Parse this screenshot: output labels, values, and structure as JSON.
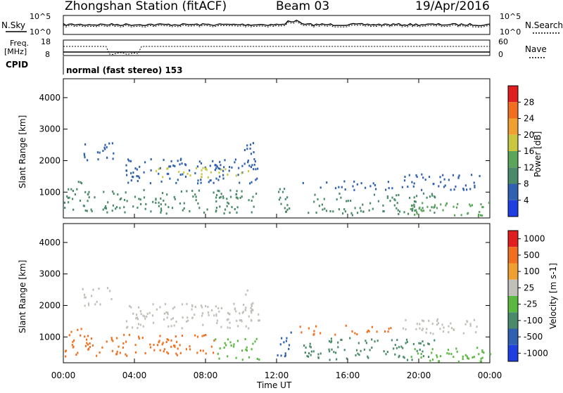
{
  "header": {
    "station": "Zhongshan Station (fitACF)",
    "beam": "Beam 03",
    "date": "19/Apr/2016"
  },
  "noise_panel": {
    "left_label": "N.Sky",
    "right_label": "N.Search",
    "left_ticks": [
      "10^5",
      "10^0"
    ],
    "right_ticks": [
      "10^5",
      "10^0"
    ]
  },
  "freq_panel": {
    "left_label_1": "Freq.",
    "left_label_2": "[MHz]",
    "right_label": "Nave",
    "left_ticks": [
      "18",
      "8"
    ],
    "right_ticks": [
      "60",
      "0"
    ]
  },
  "cpid_panel": {
    "label": "CPID",
    "text": "normal (fast stereo) 153"
  },
  "time_axis": {
    "label": "Time UT",
    "ticks": [
      "00:00",
      "04:00",
      "08:00",
      "12:00",
      "16:00",
      "20:00",
      "00:00"
    ]
  },
  "chart_data": [
    {
      "type": "heatmap",
      "title": "",
      "xlabel": "",
      "ylabel": "Slant Range [km]",
      "x_range_hours": [
        0,
        24
      ],
      "ylim": [
        180,
        4600
      ],
      "yticks": [
        "1000",
        "2000",
        "3000",
        "4000"
      ],
      "colorbar": {
        "label": "Power [dB]",
        "ticks": [
          "4",
          "8",
          "12",
          "16",
          "20",
          "24",
          "28"
        ],
        "colors": [
          "#1f3fe0",
          "#3060b0",
          "#4a8a6a",
          "#5aa55a",
          "#c8c840",
          "#f0a030",
          "#f07020",
          "#e02020"
        ]
      },
      "scatter_regions": [
        {
          "t0": 0.0,
          "t1": 1.2,
          "r0": 400,
          "r1": 1400,
          "color": "#4a8a6a"
        },
        {
          "t0": 1.0,
          "t1": 2.8,
          "r0": 2000,
          "r1": 2600,
          "color": "#3060b0"
        },
        {
          "t0": 1.2,
          "t1": 11.0,
          "r0": 350,
          "r1": 1100,
          "color": "#4a8a6a"
        },
        {
          "t0": 3.5,
          "t1": 11.0,
          "r0": 1300,
          "r1": 2100,
          "color": "#3060b0"
        },
        {
          "t0": 5.0,
          "t1": 10.5,
          "r0": 1500,
          "r1": 1800,
          "color": "#c8c840"
        },
        {
          "t0": 10.0,
          "t1": 10.8,
          "r0": 1700,
          "r1": 2600,
          "color": "#3060b0"
        },
        {
          "t0": 12.0,
          "t1": 12.8,
          "r0": 400,
          "r1": 1200,
          "color": "#4a8a6a"
        },
        {
          "t0": 13.2,
          "t1": 18.5,
          "r0": 1100,
          "r1": 1400,
          "color": "#3060b0"
        },
        {
          "t0": 13.5,
          "t1": 21.0,
          "r0": 300,
          "r1": 1000,
          "color": "#4a8a6a"
        },
        {
          "t0": 19.5,
          "t1": 24.0,
          "r0": 250,
          "r1": 700,
          "color": "#5aa55a"
        },
        {
          "t0": 19.0,
          "t1": 23.5,
          "r0": 1100,
          "r1": 1600,
          "color": "#3060b0"
        }
      ]
    },
    {
      "type": "heatmap",
      "title": "",
      "xlabel": "Time UT",
      "ylabel": "Slant Range [km]",
      "x_range_hours": [
        0,
        24
      ],
      "ylim": [
        180,
        4600
      ],
      "yticks": [
        "1000",
        "2000",
        "3000",
        "4000"
      ],
      "colorbar": {
        "label": "Velocity [m s-1]",
        "ticks": [
          "1000",
          "500",
          "100",
          "25",
          "-25",
          "-100",
          "-500",
          "-1000"
        ],
        "colors": [
          "#1f3fe0",
          "#3060b0",
          "#4a8a6a",
          "#5ab840",
          "#c0c0b8",
          "#f0a030",
          "#f07020",
          "#e02020"
        ]
      },
      "scatter_regions": [
        {
          "t0": 0.0,
          "t1": 1.5,
          "r0": 400,
          "r1": 1300,
          "color": "#f07020"
        },
        {
          "t0": 1.0,
          "t1": 2.8,
          "r0": 2000,
          "r1": 2600,
          "color": "#c0c0b8"
        },
        {
          "t0": 1.2,
          "t1": 8.5,
          "r0": 400,
          "r1": 1100,
          "color": "#f07020"
        },
        {
          "t0": 3.5,
          "t1": 11.0,
          "r0": 1300,
          "r1": 2100,
          "color": "#c0c0b8"
        },
        {
          "t0": 8.5,
          "t1": 11.0,
          "r0": 300,
          "r1": 1000,
          "color": "#5ab840"
        },
        {
          "t0": 10.0,
          "t1": 10.8,
          "r0": 1700,
          "r1": 2600,
          "color": "#c0c0b8"
        },
        {
          "t0": 12.0,
          "t1": 12.8,
          "r0": 400,
          "r1": 1200,
          "color": "#3060b0"
        },
        {
          "t0": 13.2,
          "t1": 18.5,
          "r0": 1100,
          "r1": 1400,
          "color": "#f07020"
        },
        {
          "t0": 13.5,
          "t1": 21.0,
          "r0": 300,
          "r1": 1000,
          "color": "#4a8a6a"
        },
        {
          "t0": 19.5,
          "t1": 24.0,
          "r0": 250,
          "r1": 700,
          "color": "#5ab840"
        },
        {
          "t0": 19.0,
          "t1": 23.5,
          "r0": 1100,
          "r1": 1600,
          "color": "#c0c0b8"
        }
      ]
    }
  ]
}
